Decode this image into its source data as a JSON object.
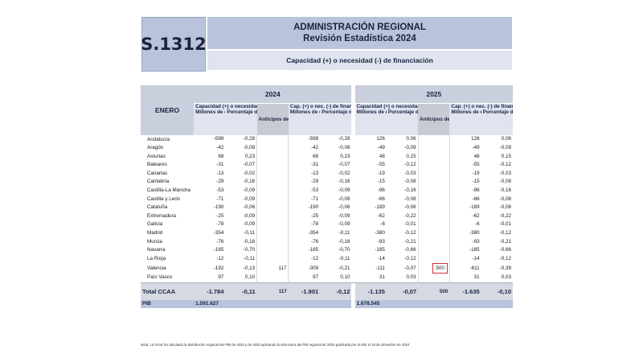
{
  "header": {
    "code": "S.1312",
    "title_line1": "ADMINISTRACIÓN REGIONAL",
    "title_line2": "Revisión Estadística 2024",
    "subtitle": "Capacidad (+) o necesidad (-) de financiación"
  },
  "table": {
    "month_label": "ENERO",
    "years": [
      "2024",
      "2025"
    ],
    "group_headers": {
      "capacidad": "Capacidad (+) o necesidad (-) de financiación",
      "anticipos": "Anticipos del sistema de financiación",
      "cap_sin": "Cap. (+) o nec. (-) de financiación sin anticipos",
      "cap_sin_2025": "Cap. (+) o nec. (-) de financiación sin anticipos"
    },
    "sub_headers": {
      "millones": "Millones de euros",
      "porcentaje": "Porcentaje del PIB regional"
    },
    "rows": [
      {
        "region": "Andalucía",
        "v": [
          "-598",
          "-0,28",
          "",
          "-598",
          "-0,28",
          "126",
          "0,06",
          "",
          "126",
          "0,06"
        ]
      },
      {
        "region": "Aragón",
        "v": [
          "-42",
          "-0,08",
          "",
          "-42",
          "-0,08",
          "-49",
          "-0,09",
          "",
          "-49",
          "-0,09"
        ]
      },
      {
        "region": "Asturias",
        "v": [
          "68",
          "0,23",
          "",
          "68",
          "0,23",
          "48",
          "0,15",
          "",
          "48",
          "0,15"
        ]
      },
      {
        "region": "Baleares",
        "v": [
          "-31",
          "-0,07",
          "",
          "-31",
          "-0,07",
          "-55",
          "-0,12",
          "",
          "-55",
          "-0,12"
        ]
      },
      {
        "region": "Canarias",
        "v": [
          "-13",
          "-0,02",
          "",
          "-13",
          "-0,02",
          "-19",
          "-0,03",
          "",
          "-19",
          "-0,03"
        ]
      },
      {
        "region": "Cantabria",
        "v": [
          "-29",
          "-0,16",
          "",
          "-29",
          "-0,16",
          "-15",
          "-0,08",
          "",
          "-15",
          "-0,08"
        ]
      },
      {
        "region": "Castilla-La Mancha",
        "v": [
          "-53",
          "-0,09",
          "",
          "-53",
          "-0,09",
          "-96",
          "-0,16",
          "",
          "-96",
          "-0,16"
        ]
      },
      {
        "region": "Castilla y León",
        "v": [
          "-71",
          "-0,09",
          "",
          "-71",
          "-0,09",
          "-66",
          "-0,08",
          "",
          "-66",
          "-0,08"
        ]
      },
      {
        "region": "Cataluña",
        "v": [
          "-190",
          "-0,06",
          "",
          "-190",
          "-0,06",
          "-189",
          "-0,06",
          "",
          "-189",
          "-0,06"
        ]
      },
      {
        "region": "Extremadura",
        "v": [
          "-25",
          "-0,09",
          "",
          "-25",
          "-0,09",
          "-62",
          "-0,22",
          "",
          "-62",
          "-0,22"
        ]
      },
      {
        "region": "Galicia",
        "v": [
          "-78",
          "-0,09",
          "",
          "-78",
          "-0,09",
          "-6",
          "-0,01",
          "",
          "-6",
          "-0,01"
        ]
      },
      {
        "region": "Madrid",
        "v": [
          "-354",
          "-0,11",
          "",
          "-354",
          "-0,11",
          "-380",
          "-0,12",
          "",
          "-380",
          "-0,12"
        ]
      },
      {
        "region": "Murcia",
        "v": [
          "-76",
          "-0,18",
          "",
          "-76",
          "-0,18",
          "-93",
          "-0,21",
          "",
          "-93",
          "-0,21"
        ]
      },
      {
        "region": "Navarra",
        "v": [
          "-185",
          "-0,70",
          "",
          "-185",
          "-0,70",
          "-185",
          "-0,66",
          "",
          "-185",
          "-0,66"
        ]
      },
      {
        "region": "La Rioja",
        "v": [
          "-12",
          "-0,11",
          "",
          "-12",
          "-0,11",
          "-14",
          "-0,12",
          "",
          "-14",
          "-0,12"
        ]
      },
      {
        "region": "Valencia",
        "v": [
          "-192",
          "-0,13",
          "117",
          "-309",
          "-0,21",
          "-111",
          "-0,07",
          "500",
          "-611",
          "-0,39"
        ]
      },
      {
        "region": "País Vasco",
        "v": [
          "97",
          "0,10",
          "",
          "97",
          "0,10",
          "31",
          "0,03",
          "",
          "31",
          "0,03"
        ]
      }
    ],
    "total": {
      "label": "Total CCAA",
      "v": [
        "-1.784",
        "-0,11",
        "117",
        "-1.901",
        "-0,12",
        "-1.135",
        "-0,07",
        "500",
        "-1.635",
        "-0,10"
      ]
    },
    "pib": {
      "label": "PIB",
      "v2024": "1.591.627",
      "v2025": "1.678.545"
    },
    "highlight_color": "#d0303a"
  },
  "note": "Nota: La IGAE ha calculado la distribución regional del PIB de 2024 y de 2025 aplicando la estructura del PIB regional de 2023 publicada por el INE el 18 de diciembre de 2024"
}
